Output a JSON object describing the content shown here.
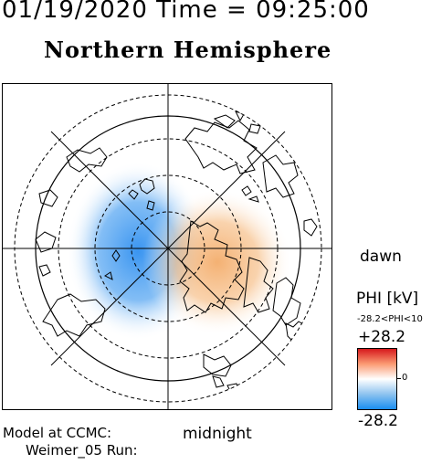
{
  "header": {
    "timestamp": "01/19/2020 Time = 09:25:00"
  },
  "map": {
    "title": "Northern Hemisphere",
    "label_dawn": "dawn",
    "label_midnight": "midnight",
    "potential_cells": [
      {
        "sign": "negative",
        "side": "dusk",
        "color": "#2f8ff0"
      },
      {
        "sign": "positive",
        "side": "dawn",
        "color": "#f5a65c"
      }
    ]
  },
  "colorbar": {
    "title": "PHI [kV]",
    "range_text": "-28.2<PHI<10",
    "max_label": "+28.2",
    "mid_label": "0",
    "min_label": "-28.2",
    "colors": [
      "#d7191c",
      "#fb9b73",
      "#ffffff",
      "#8ec3ef",
      "#1a8ef0"
    ]
  },
  "footer": {
    "model_line": "Model at CCMC:",
    "run_line": "Weimer_05 Run:"
  }
}
